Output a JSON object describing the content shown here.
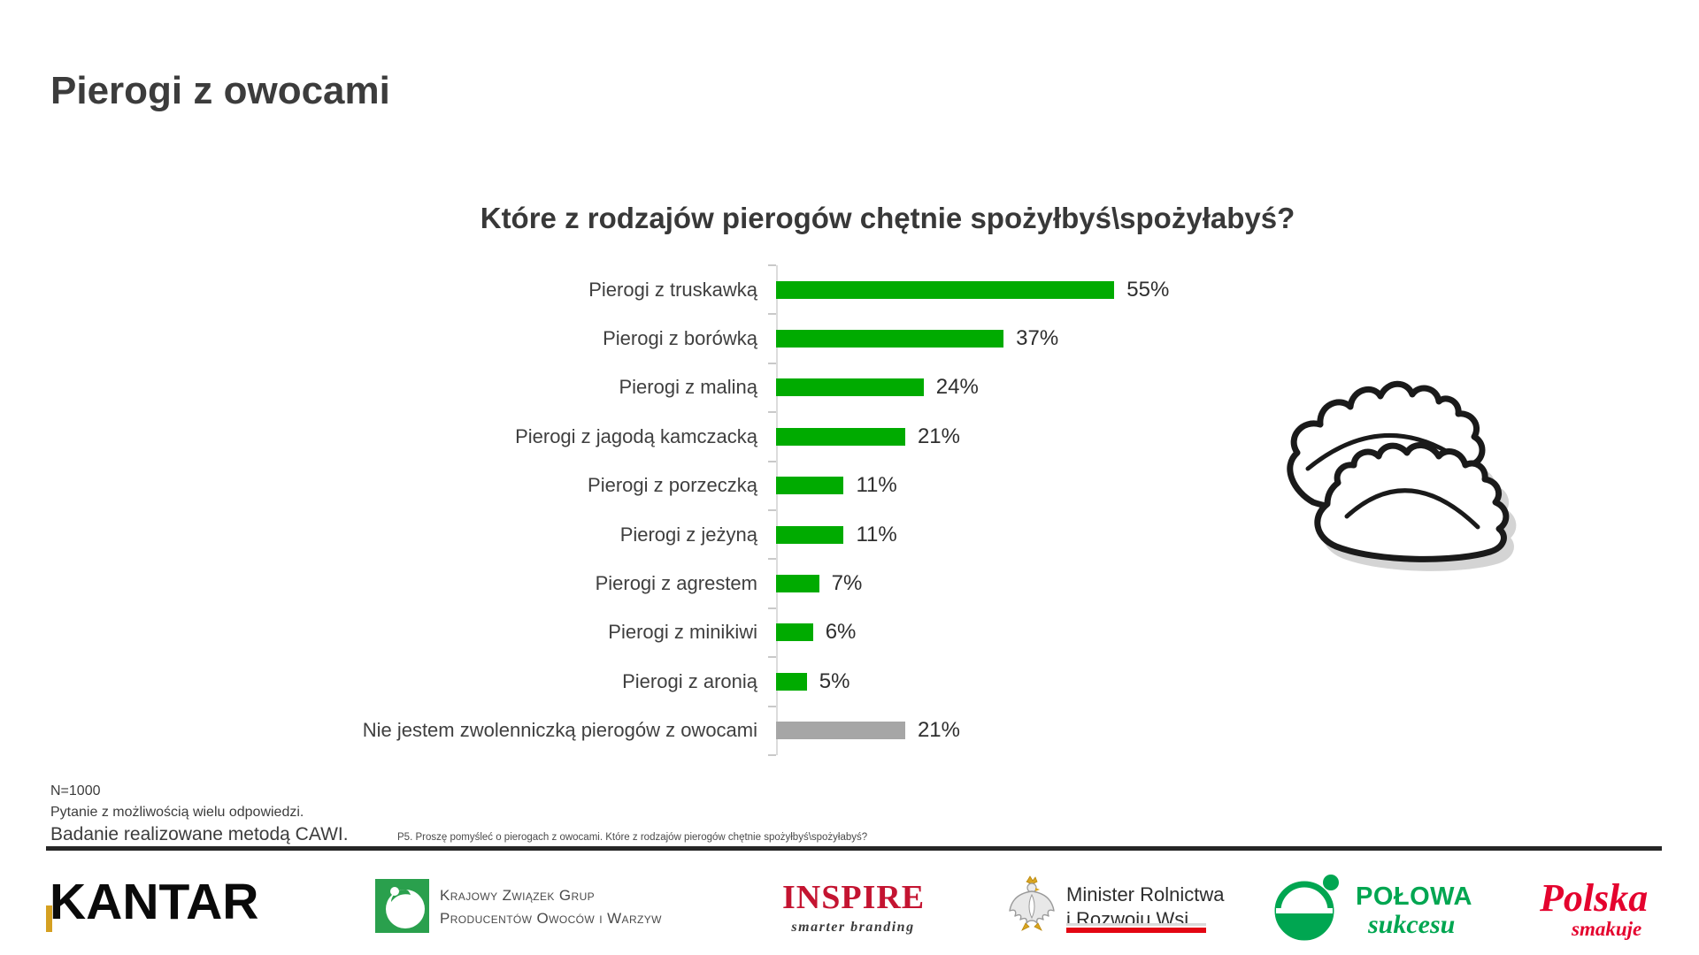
{
  "slide": {
    "title": "Pierogi z owocami"
  },
  "chart_data": {
    "type": "bar",
    "orientation": "horizontal",
    "title": "Które z rodzajów pierogów chętnie spożyłbyś\\spożyłabyś?",
    "categories": [
      "Pierogi z truskawką",
      "Pierogi z borówką",
      "Pierogi z maliną",
      "Pierogi z jagodą kamczacką",
      "Pierogi z porzeczką",
      "Pierogi z jeżyną",
      "Pierogi z agrestem",
      "Pierogi z minikiwi",
      "Pierogi z aronią",
      "Nie jestem zwolenniczką pierogów z owocami"
    ],
    "values": [
      55,
      37,
      24,
      21,
      11,
      11,
      7,
      6,
      5,
      21
    ],
    "value_labels": [
      "55%",
      "37%",
      "24%",
      "21%",
      "11%",
      "11%",
      "7%",
      "6%",
      "5%",
      "21%"
    ],
    "bar_colors": [
      "green",
      "green",
      "green",
      "green",
      "green",
      "green",
      "green",
      "green",
      "green",
      "gray"
    ],
    "value_suffix": "%",
    "xlim": [
      0,
      60
    ],
    "grid": false,
    "legend": false
  },
  "footnotes": {
    "sample": "N=1000",
    "multi_answer": "Pytanie z możliwością wielu odpowiedzi.",
    "method": "Badanie realizowane metodą CAWI.",
    "question_note": "P5. Proszę pomyśleć o pierogach z owocami. Które z rodzajów pierogów chętnie spożyłbyś\\spożyłabyś?"
  },
  "logos": {
    "kantar": {
      "text": "KANTAR"
    },
    "kzgp": {
      "line1": "Krajowy Związek Grup",
      "line2": "Producentów Owoców i Warzyw"
    },
    "inspire": {
      "name": "INSPIRE",
      "tagline": "smarter branding"
    },
    "ministry": {
      "line1": "Minister Rolnictwa",
      "line2": "i Rozwoju Wsi"
    },
    "polowa": {
      "line1": "POŁOWA",
      "line2": "sukcesu"
    },
    "polska": {
      "line1": "Polska",
      "line2": "smakuje"
    }
  },
  "colors": {
    "bar_green": "#00AB00",
    "bar_gray": "#A6A6A6",
    "axis": "#DCDCDC",
    "divider": "#262626",
    "kantar_gold": "#D5A021",
    "kzgp_green": "#2AA04D",
    "inspire_red": "#C41431",
    "ministry_red": "#E30613",
    "polowa_green": "#00A651",
    "polska_red": "#E4032E",
    "text_dark": "#3C3C3C"
  }
}
